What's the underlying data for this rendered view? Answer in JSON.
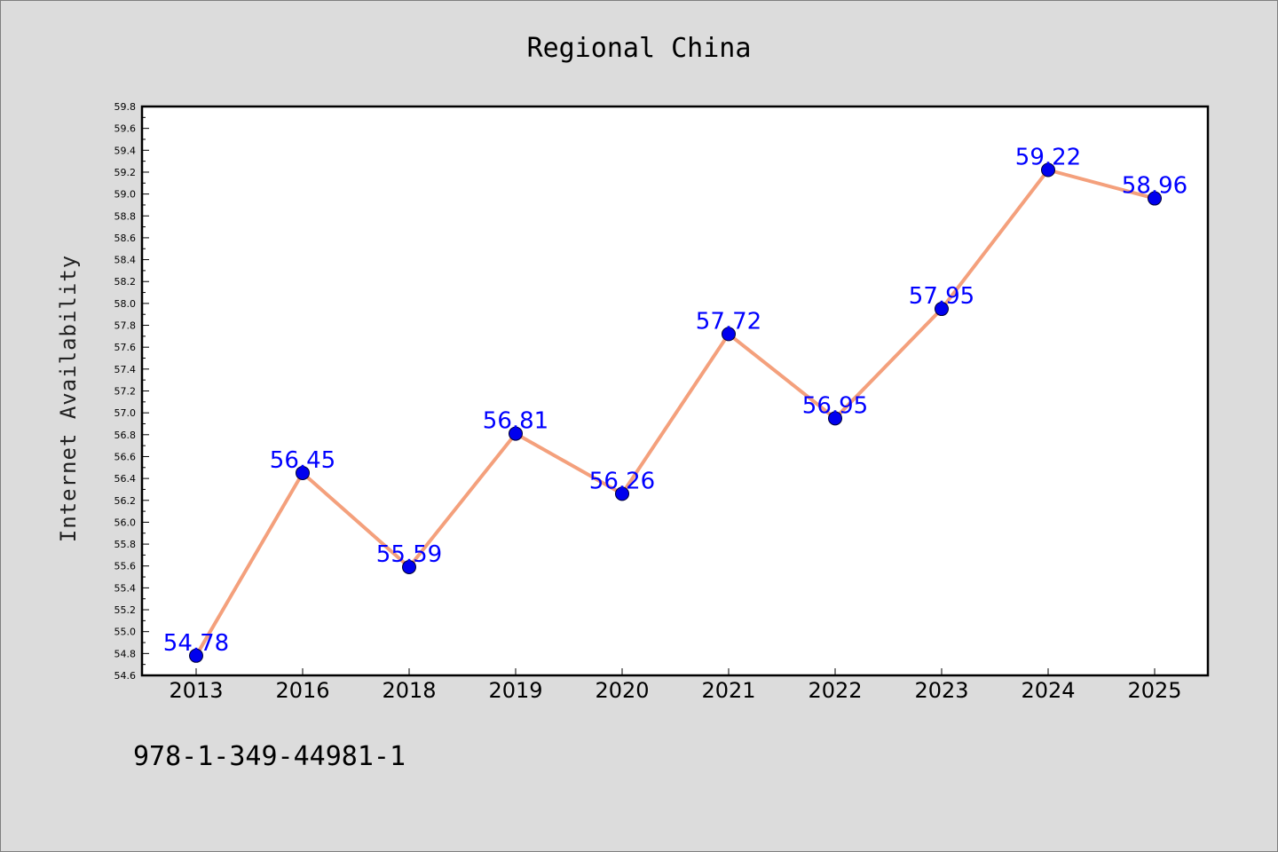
{
  "chart_data": {
    "type": "line",
    "title": "Regional China",
    "xlabel": "",
    "ylabel": "Internet Availability",
    "categories": [
      "2013",
      "2016",
      "2018",
      "2019",
      "2020",
      "2021",
      "2022",
      "2023",
      "2024",
      "2025"
    ],
    "series": [
      {
        "values": [
          54.78,
          56.45,
          55.59,
          56.81,
          56.26,
          57.72,
          56.95,
          57.95,
          59.22,
          58.96
        ]
      }
    ],
    "data_labels": [
      "54.78",
      "56.45",
      "55.59",
      "56.81",
      "56.26",
      "57.72",
      "56.95",
      "57.95",
      "59.22",
      "58.96"
    ],
    "ylim": [
      54.6,
      59.8
    ],
    "ytick_step": 0.2,
    "grid": false,
    "colors": {
      "line": "#f4a07c",
      "marker": "#0000ee",
      "label": "#0000ff"
    }
  },
  "footer": {
    "isbn": "978-1-349-44981-1"
  }
}
